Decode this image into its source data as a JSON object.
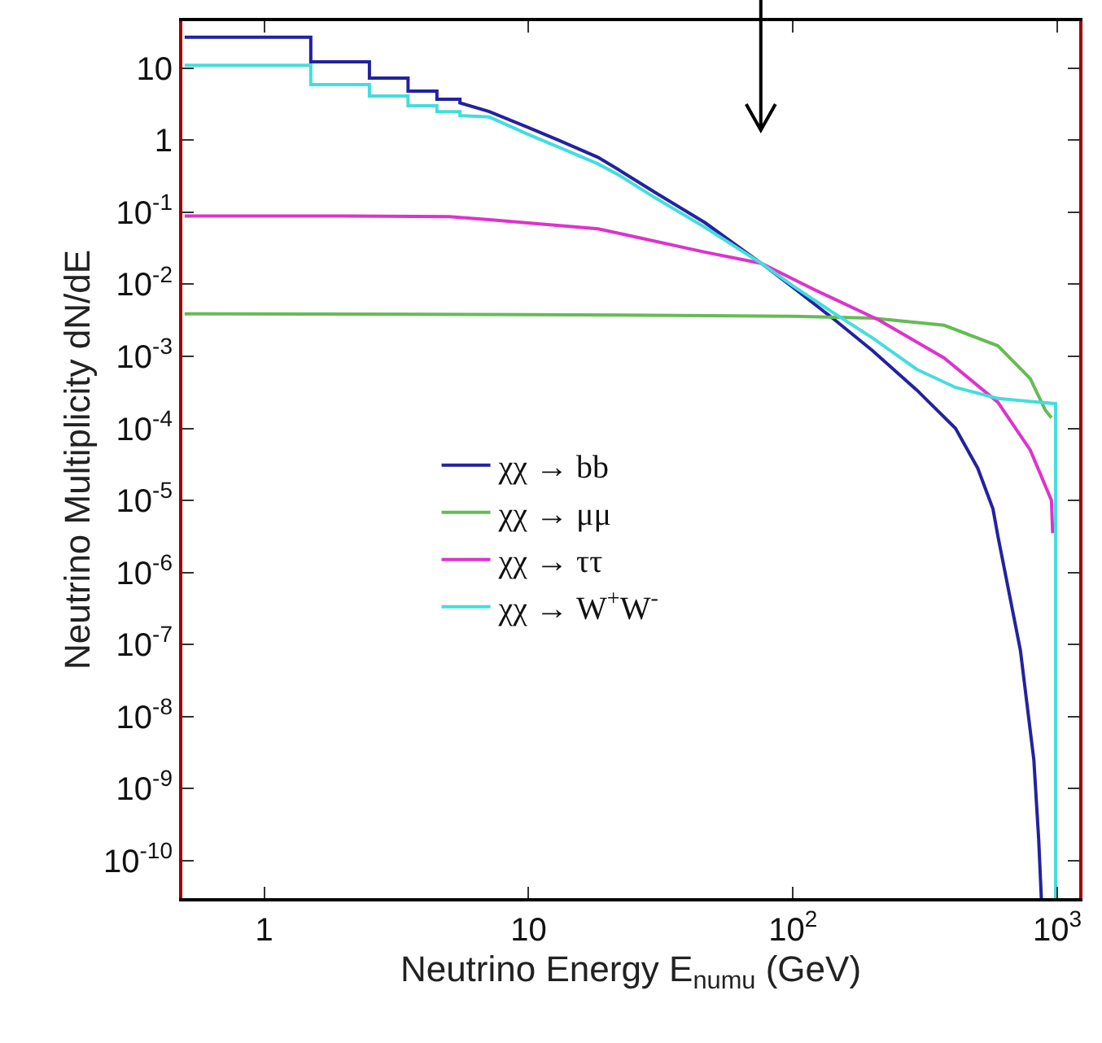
{
  "chart_data": {
    "type": "line",
    "xlabel": "Neutrino Energy E$_{nu}$$_{mu}$ (GeV)",
    "ylabel": "Neutrino Multiplicity dN/dE",
    "log": "xy",
    "grid": false,
    "legend": "center",
    "marker": "none",
    "line_style": "solid",
    "xlim": [
      0.49,
      1210
    ],
    "ylim": [
      3e-11,
      45
    ],
    "xticks": [
      1,
      10,
      {
        "value": 100,
        "label": "10$^{2}$"
      },
      {
        "value": 1000,
        "label": "10$^{3}$"
      }
    ],
    "yticks": [
      10,
      1,
      {
        "value": 0.1,
        "label": "10$^{-1}$"
      },
      {
        "value": 0.01,
        "label": "10$^{-2}$"
      },
      {
        "value": 0.001,
        "label": "10$^{-3}$"
      },
      {
        "value": 0.0001,
        "label": "10$^{-4}$"
      },
      {
        "value": 1e-05,
        "label": "10$^{-5}$"
      },
      {
        "value": 1e-06,
        "label": "10$^{-6}$"
      },
      {
        "value": 1e-07,
        "label": "10$^{-7}$"
      },
      {
        "value": 1e-08,
        "label": "10$^{-8}$"
      },
      {
        "value": 1e-09,
        "label": "10$^{-9}$"
      },
      {
        "value": 1e-10,
        "label": "10$^{-10}$"
      }
    ],
    "series": [
      {
        "name": "χχ → bb",
        "color": "#2222a0",
        "x": [
          0.5,
          1.5,
          1.5,
          2.5,
          2.5,
          3.5,
          3.5,
          4.5,
          4.5,
          5.5,
          5.5,
          7.1,
          10,
          13,
          18.3,
          21.9,
          30,
          46.4,
          76,
          100,
          144,
          200,
          294,
          412,
          500,
          571,
          596,
          725,
          815,
          850,
          870
        ],
        "values": [
          27,
          27,
          12.3,
          12.3,
          7.3,
          7.3,
          4.8,
          4.8,
          3.7,
          3.7,
          3.3,
          2.5,
          1.5,
          1.0,
          0.58,
          0.39,
          0.19,
          0.072,
          0.0195,
          0.0091,
          0.0032,
          0.0012,
          0.00034,
          0.0001,
          2.8e-05,
          7.6e-06,
          3.2e-06,
          8.3e-08,
          2.5e-09,
          2e-10,
          3e-11
        ]
      },
      {
        "name": "χχ → μμ",
        "color": "#66bb55",
        "x": [
          0.5,
          10,
          100,
          200,
          373,
          596,
          790,
          900,
          950
        ],
        "values": [
          0.0039,
          0.0038,
          0.0036,
          0.0034,
          0.0027,
          0.0014,
          0.00049,
          0.00018,
          0.00014
        ]
      },
      {
        "name": "χχ → ττ",
        "color": "#dd33cc",
        "x": [
          0.5,
          2,
          5,
          7.1,
          18.3,
          46.4,
          76,
          120,
          211,
          373,
          596,
          790,
          950,
          960
        ],
        "values": [
          0.089,
          0.089,
          0.087,
          0.079,
          0.059,
          0.028,
          0.0195,
          0.0085,
          0.0032,
          0.00095,
          0.00023,
          5e-05,
          1e-05,
          3.5e-06
        ]
      },
      {
        "name": "χχ → W$^{+}$W$^{-}$",
        "color": "#44dddd",
        "x": [
          0.5,
          1.5,
          1.5,
          2.5,
          2.5,
          3.5,
          3.5,
          4.5,
          4.5,
          5.5,
          5.5,
          7.1,
          10,
          13,
          18.3,
          21.9,
          30,
          46.4,
          76,
          100,
          144,
          200,
          294,
          412,
          596,
          985,
          985
        ],
        "values": [
          11,
          11,
          5.9,
          5.9,
          4.1,
          4.1,
          3.0,
          3.0,
          2.5,
          2.5,
          2.2,
          2.1,
          1.2,
          0.8,
          0.47,
          0.33,
          0.16,
          0.062,
          0.0195,
          0.0095,
          0.0039,
          0.0018,
          0.00066,
          0.00037,
          0.00026,
          0.00022,
          3e-11
        ]
      }
    ]
  }
}
